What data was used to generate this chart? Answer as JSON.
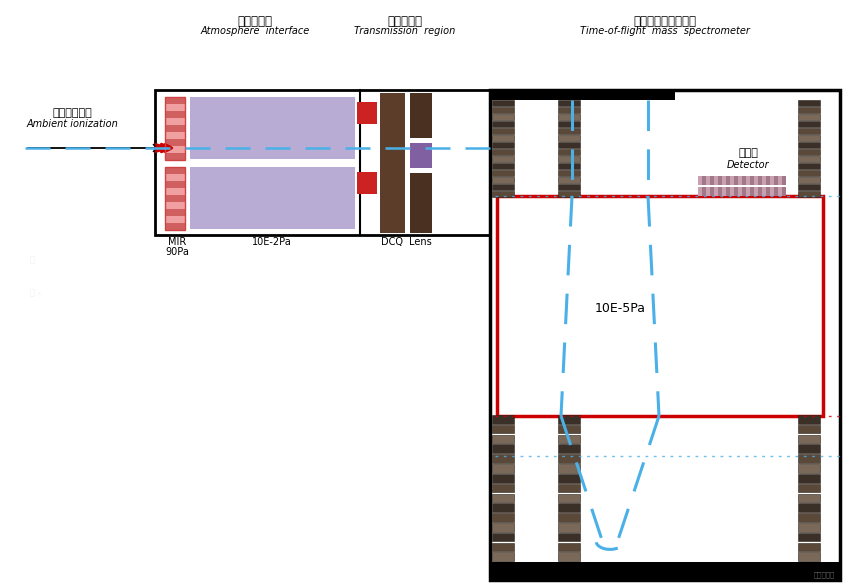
{
  "bg_color": "#ffffff",
  "fig_width": 8.48,
  "fig_height": 5.87,
  "label_atm_interface_cn": "大气压接口",
  "label_atm_interface_en": "Atmosphere  interface",
  "label_trans_region_cn": "离子传输区",
  "label_trans_region_en": "Transmission  region",
  "label_tof_cn": "飞行时间质量分析器",
  "label_tof_en": "Time-of-flight  mass  spectrometer",
  "label_source_cn": "大气压离子源",
  "label_source_en": "Ambient ionization",
  "label_mir": "MIR",
  "label_90pa": "90Pa",
  "label_10e2pa": "10E-2Pa",
  "label_dcq": "DCQ",
  "label_lens": "Lens",
  "label_10e5pa": "10E-5Pa",
  "label_detector_cn": "检测器",
  "label_detector_en": "Detector",
  "blue_dash": "#4ab0e8",
  "red_color": "#cc0000",
  "screw_dark": "#3a3028",
  "screw_mid": "#5a4838",
  "screw_light": "#7a6858"
}
